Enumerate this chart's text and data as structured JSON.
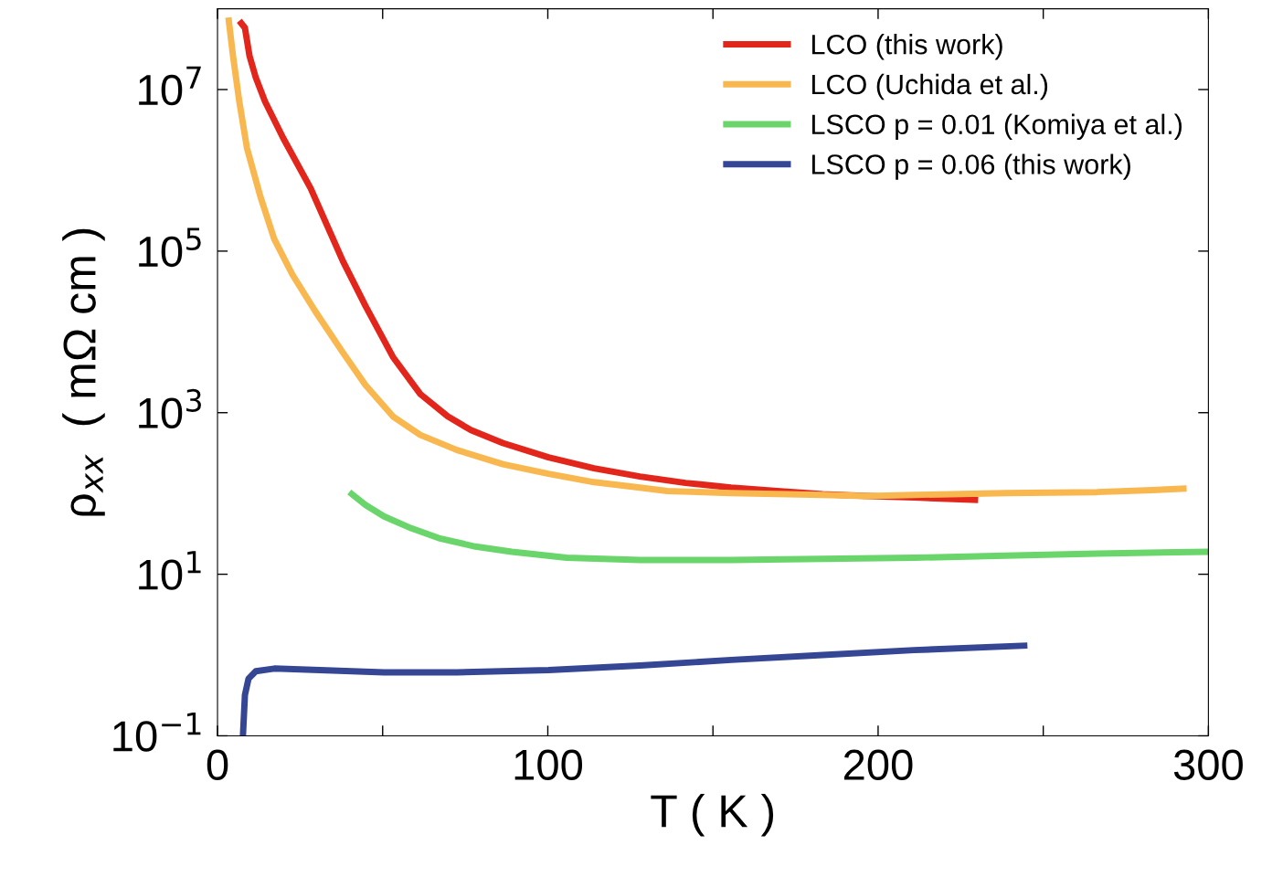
{
  "chart_data": {
    "type": "line",
    "xlabel": "T ( K )",
    "ylabel": "ρ$_{xx}$  ( mΩ cm )",
    "log": "y",
    "grid": false,
    "legend": "top right",
    "marker": "none",
    "line_style": "solid",
    "xlim": [
      0,
      300
    ],
    "xticks": [
      0,
      {
        "value": 50,
        "label": null
      },
      100,
      {
        "value": 150,
        "label": null
      },
      200,
      {
        "value": 250,
        "label": null
      },
      300
    ],
    "ylim": [
      0.1,
      100000000
    ],
    "yticks": [
      {
        "value": 0.1,
        "label": "10$^{−1}$"
      },
      {
        "value": 10,
        "label": "10$^{1}$"
      },
      {
        "value": 1000,
        "label": "10$^{3}$"
      },
      {
        "value": 100000,
        "label": "10$^{5}$"
      },
      {
        "value": 10000000,
        "label": "10$^{7}$"
      }
    ],
    "series": [
      {
        "name": "LCO (this work)",
        "color": "#e2261b",
        "x": [
          6.6,
          8.3,
          9.7,
          11.6,
          14.4,
          19.9,
          28.2,
          37.9,
          44.8,
          53.1,
          61.4,
          69.7,
          76.7,
          86.4,
          100.2,
          114,
          127.9,
          141.7,
          155.5,
          169.4,
          183.2,
          197,
          210.9,
          230.3
        ],
        "values": [
          71000000,
          58000000,
          26000000,
          14000000,
          7100000,
          2500000,
          600000,
          76000,
          21000,
          4900,
          1700,
          900,
          610,
          420,
          280,
          205,
          162,
          135,
          118,
          107,
          98,
          93,
          89,
          83
        ]
      },
      {
        "name": "LCO (Uchida et al.)",
        "color": "#f9b74f",
        "x": [
          3.3,
          4.7,
          6.6,
          8.9,
          13.0,
          17.2,
          22.7,
          29.6,
          37.9,
          44.8,
          53.1,
          61.4,
          72.5,
          86.4,
          100.2,
          114,
          127.9,
          136.2,
          155.5,
          183.2,
          197,
          210.9,
          238.6,
          266.3,
          282.9,
          293.4
        ],
        "values": [
          78000000,
          26000000,
          7100000,
          1900000,
          470000,
          140000,
          51000,
          18000,
          5600,
          2200,
          900,
          530,
          345,
          230,
          175,
          138,
          118,
          107,
          101,
          96,
          93,
          96,
          101,
          104,
          110,
          115
        ]
      },
      {
        "name": "LSCO p = 0.01 (Komiya et al.)",
        "color": "#6ad56a",
        "x": [
          39.9,
          44.8,
          50.4,
          58.7,
          67.0,
          78.1,
          89.1,
          105.7,
          127.9,
          155.5,
          183.2,
          210.9,
          238.6,
          266.3,
          300
        ],
        "values": [
          104,
          72,
          52,
          37,
          28,
          22,
          19,
          16,
          15,
          15,
          15.5,
          16,
          17,
          18,
          19
        ]
      },
      {
        "name": "LSCO p = 0.06 (this work)",
        "color": "#354694",
        "x": [
          7.7,
          8.3,
          9.4,
          11.6,
          17.2,
          31,
          50.4,
          72.5,
          100.2,
          127.9,
          155.5,
          183.2,
          210.9,
          245.2
        ],
        "values": [
          0.1,
          0.32,
          0.51,
          0.63,
          0.68,
          0.65,
          0.61,
          0.61,
          0.65,
          0.74,
          0.87,
          1.0,
          1.15,
          1.31
        ]
      }
    ]
  }
}
